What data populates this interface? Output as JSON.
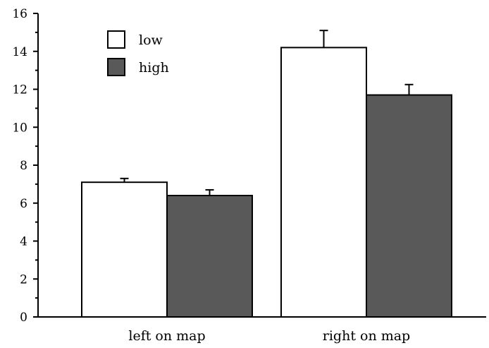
{
  "chart_data": {
    "type": "bar",
    "categories": [
      "left on map",
      "right on map"
    ],
    "series": [
      {
        "name": "low",
        "values": [
          7.1,
          14.2
        ],
        "errors": [
          0.2,
          0.9
        ],
        "color": "#ffffff"
      },
      {
        "name": "high",
        "values": [
          6.4,
          11.7
        ],
        "errors": [
          0.3,
          0.55
        ],
        "color": "#595959"
      }
    ],
    "title": "",
    "xlabel": "",
    "ylabel": "",
    "ylim": [
      0,
      16
    ],
    "yticks": [
      0,
      2,
      4,
      6,
      8,
      10,
      12,
      14,
      16
    ],
    "grid": false,
    "legend_position": "top-left"
  }
}
